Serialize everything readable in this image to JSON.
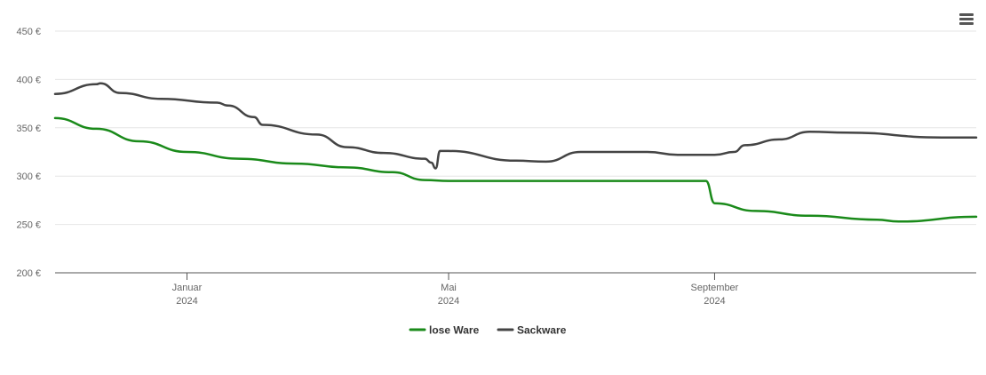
{
  "menu": {
    "icon": "hamburger-menu-icon"
  },
  "chart_data": {
    "type": "line",
    "title": "",
    "xlabel": "",
    "ylabel": "",
    "y_ticks": [
      {
        "value": 200,
        "label": "200 €"
      },
      {
        "value": 250,
        "label": "250 €"
      },
      {
        "value": 300,
        "label": "300 €"
      },
      {
        "value": 350,
        "label": "350 €"
      },
      {
        "value": 400,
        "label": "400 €"
      },
      {
        "value": 450,
        "label": "450 €"
      }
    ],
    "ylim": [
      200,
      450
    ],
    "xlim": [
      "2023-11-01",
      "2024-12-31"
    ],
    "x_ticks": [
      {
        "date": "2024-01-01",
        "label1": "Januar",
        "label2": "2024"
      },
      {
        "date": "2024-05-01",
        "label1": "Mai",
        "label2": "2024"
      },
      {
        "date": "2024-09-01",
        "label1": "September",
        "label2": "2024"
      }
    ],
    "grid": true,
    "legend_position": "bottom-center",
    "series": [
      {
        "name": "lose Ware",
        "color": "#1a8a1a",
        "points": [
          [
            "2023-11-01",
            360
          ],
          [
            "2023-11-20",
            349
          ],
          [
            "2023-12-10",
            336
          ],
          [
            "2024-01-01",
            325
          ],
          [
            "2024-01-25",
            318
          ],
          [
            "2024-02-20",
            313
          ],
          [
            "2024-03-15",
            309
          ],
          [
            "2024-04-05",
            304
          ],
          [
            "2024-04-20",
            296
          ],
          [
            "2024-05-01",
            295
          ],
          [
            "2024-07-01",
            295
          ],
          [
            "2024-08-28",
            295
          ],
          [
            "2024-09-01",
            272
          ],
          [
            "2024-09-20",
            264
          ],
          [
            "2024-10-15",
            259
          ],
          [
            "2024-11-15",
            255
          ],
          [
            "2024-11-25",
            253
          ],
          [
            "2024-12-31",
            258
          ]
        ]
      },
      {
        "name": "Sackware",
        "color": "#444444",
        "points": [
          [
            "2023-11-01",
            385
          ],
          [
            "2023-11-20",
            395
          ],
          [
            "2023-11-22",
            396
          ],
          [
            "2023-12-01",
            386
          ],
          [
            "2023-12-20",
            380
          ],
          [
            "2024-01-15",
            376
          ],
          [
            "2024-01-20",
            373
          ],
          [
            "2024-02-01",
            361
          ],
          [
            "2024-02-05",
            353
          ],
          [
            "2024-03-01",
            343
          ],
          [
            "2024-03-15",
            330
          ],
          [
            "2024-04-01",
            324
          ],
          [
            "2024-04-20",
            318
          ],
          [
            "2024-04-23",
            314
          ],
          [
            "2024-04-25",
            308
          ],
          [
            "2024-04-27",
            326
          ],
          [
            "2024-05-01",
            326
          ],
          [
            "2024-06-01",
            316
          ],
          [
            "2024-06-15",
            315
          ],
          [
            "2024-07-01",
            325
          ],
          [
            "2024-08-01",
            325
          ],
          [
            "2024-08-15",
            322
          ],
          [
            "2024-09-01",
            322
          ],
          [
            "2024-09-10",
            325
          ],
          [
            "2024-09-15",
            332
          ],
          [
            "2024-10-01",
            338
          ],
          [
            "2024-10-15",
            346
          ],
          [
            "2024-11-01",
            345
          ],
          [
            "2024-12-15",
            340
          ],
          [
            "2024-12-31",
            340
          ]
        ]
      }
    ]
  }
}
